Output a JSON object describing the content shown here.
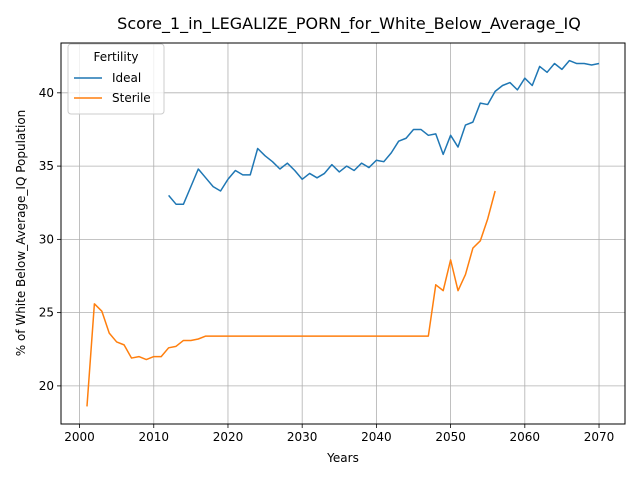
{
  "chart_data": {
    "type": "line",
    "title": "Score_1_in_LEGALIZE_PORN_for_White_Below_Average_IQ",
    "xlabel": "Years",
    "ylabel": "% of White Below_Average_IQ Population",
    "xlim": [
      1997.5,
      2073.5
    ],
    "ylim": [
      17.4,
      43.4
    ],
    "xticks": [
      2000,
      2010,
      2020,
      2030,
      2040,
      2050,
      2060,
      2070
    ],
    "yticks": [
      20,
      25,
      30,
      35,
      40
    ],
    "grid": true,
    "legend": {
      "title": "Fertility",
      "position": "upper-left"
    },
    "series": [
      {
        "name": "Ideal",
        "color": "#1f77b4",
        "x": [
          2012,
          2013,
          2014,
          2015,
          2016,
          2017,
          2018,
          2019,
          2020,
          2021,
          2022,
          2023,
          2024,
          2025,
          2026,
          2027,
          2028,
          2029,
          2030,
          2031,
          2032,
          2033,
          2034,
          2035,
          2036,
          2037,
          2038,
          2039,
          2040,
          2041,
          2042,
          2043,
          2044,
          2045,
          2046,
          2047,
          2048,
          2049,
          2050,
          2051,
          2052,
          2053,
          2054,
          2055,
          2056,
          2057,
          2058,
          2059,
          2060,
          2061,
          2062,
          2063,
          2064,
          2065,
          2066,
          2067,
          2068,
          2069,
          2070
        ],
        "y": [
          33.0,
          32.4,
          32.4,
          33.6,
          34.8,
          34.2,
          33.6,
          33.3,
          34.1,
          34.7,
          34.4,
          34.4,
          36.2,
          35.7,
          35.3,
          34.8,
          35.2,
          34.7,
          34.1,
          34.5,
          34.2,
          34.5,
          35.1,
          34.6,
          35.0,
          34.7,
          35.2,
          34.9,
          35.4,
          35.3,
          35.9,
          36.7,
          36.9,
          37.5,
          37.5,
          37.1,
          37.2,
          35.8,
          37.1,
          36.3,
          37.8,
          38.0,
          39.3,
          39.2,
          40.1,
          40.5,
          40.7,
          40.2,
          41.0,
          40.5,
          41.8,
          41.4,
          42.0,
          41.6,
          42.2,
          42.0,
          42.0,
          41.9,
          42.0
        ]
      },
      {
        "name": "Sterile",
        "color": "#ff7f0e",
        "x": [
          2001,
          2002,
          2003,
          2004,
          2005,
          2006,
          2007,
          2008,
          2009,
          2010,
          2011,
          2012,
          2013,
          2014,
          2015,
          2016,
          2017,
          2018,
          2019,
          2020,
          2021,
          2022,
          2023,
          2024,
          2025,
          2026,
          2027,
          2028,
          2029,
          2030,
          2031,
          2032,
          2033,
          2034,
          2035,
          2036,
          2037,
          2038,
          2039,
          2040,
          2041,
          2042,
          2043,
          2044,
          2045,
          2046,
          2047,
          2048,
          2049,
          2050,
          2051,
          2052,
          2053,
          2054,
          2055,
          2056
        ],
        "y": [
          18.6,
          25.6,
          25.1,
          23.6,
          23.0,
          22.8,
          21.9,
          22.0,
          21.8,
          22.0,
          22.0,
          22.6,
          22.7,
          23.1,
          23.1,
          23.2,
          23.4,
          23.4,
          23.4,
          23.4,
          23.4,
          23.4,
          23.4,
          23.4,
          23.4,
          23.4,
          23.4,
          23.4,
          23.4,
          23.4,
          23.4,
          23.4,
          23.4,
          23.4,
          23.4,
          23.4,
          23.4,
          23.4,
          23.4,
          23.4,
          23.4,
          23.4,
          23.4,
          23.4,
          23.4,
          23.4,
          23.4,
          26.9,
          26.5,
          28.6,
          26.5,
          27.6,
          29.4,
          29.9,
          31.4,
          33.3
        ]
      }
    ]
  }
}
